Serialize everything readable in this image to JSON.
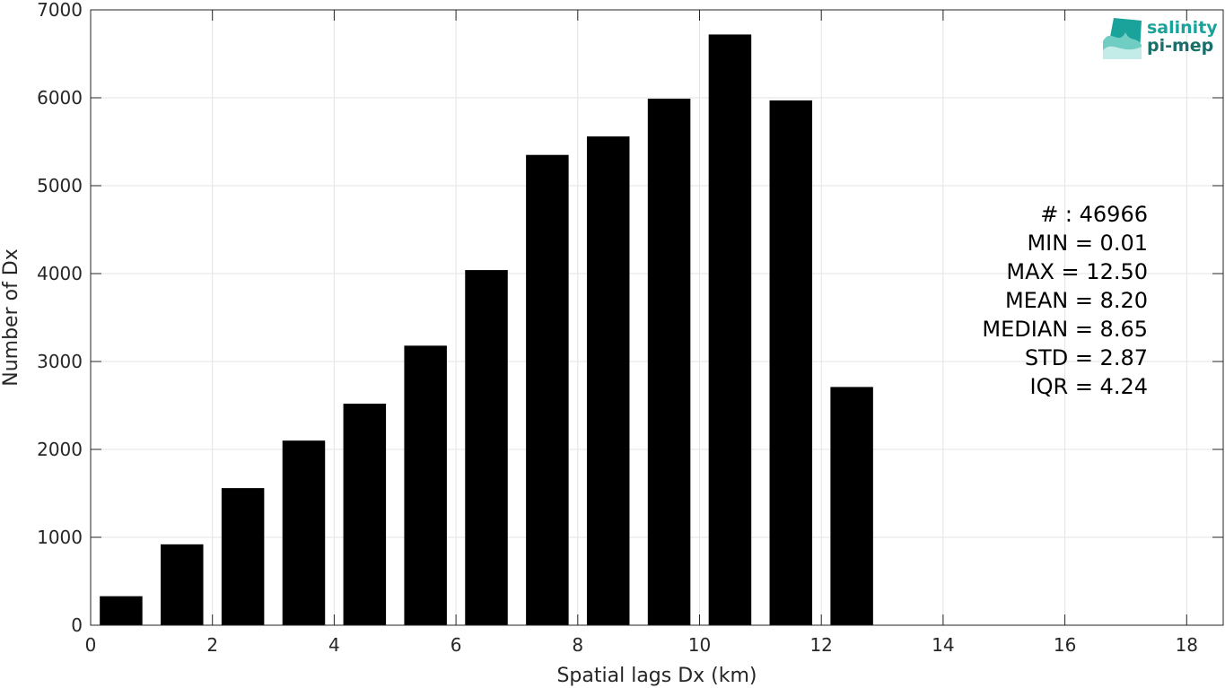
{
  "chart_data": {
    "type": "bar",
    "title": "",
    "xlabel": "Spatial lags Dx (km)",
    "ylabel": "Number of Dx",
    "xlim": [
      0,
      18.6
    ],
    "ylim": [
      0,
      7000
    ],
    "xticks": [
      0,
      2,
      4,
      6,
      8,
      10,
      12,
      14,
      16,
      18
    ],
    "yticks": [
      0,
      1000,
      2000,
      3000,
      4000,
      5000,
      6000,
      7000
    ],
    "grid": true,
    "bar_width": 0.7,
    "bins": [
      0.5,
      1.5,
      2.5,
      3.5,
      4.5,
      5.5,
      6.5,
      7.5,
      8.5,
      9.5,
      10.5,
      11.5,
      12.5
    ],
    "values": [
      330,
      920,
      1560,
      2100,
      2520,
      3180,
      4040,
      5350,
      5560,
      5990,
      6720,
      5970,
      2710
    ],
    "bar_color": "#000000",
    "stats": [
      "# : 46966",
      "MIN = 0.01",
      "MAX =  12.50",
      "MEAN = 8.20",
      "MEDIAN = 8.65",
      "STD = 2.87",
      "IQR = 4.24"
    ]
  },
  "logo": {
    "line1": "salinity",
    "line2": "pi-mep",
    "color": "#1aa39a"
  }
}
